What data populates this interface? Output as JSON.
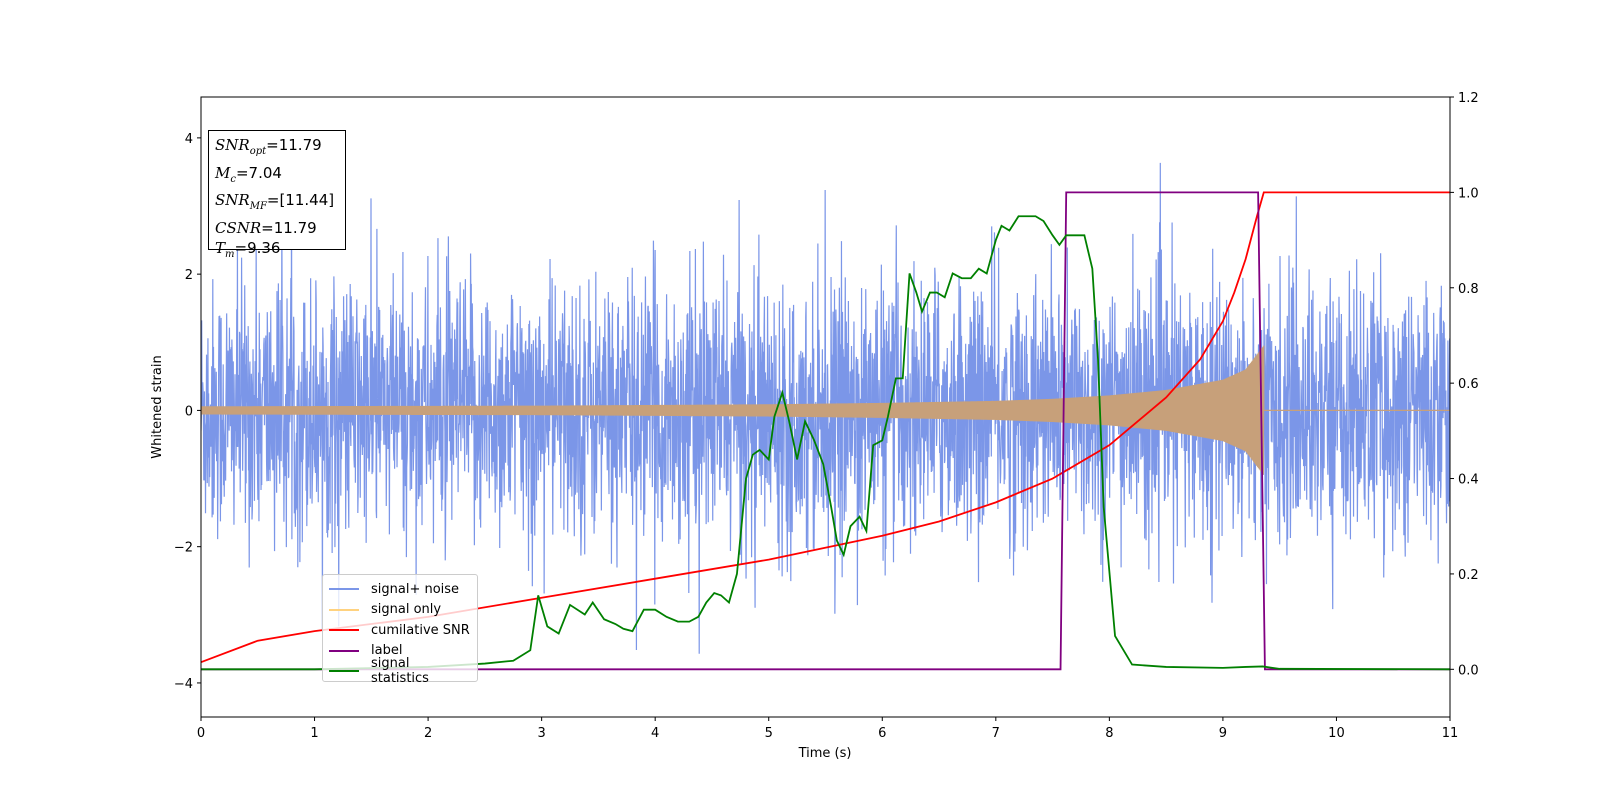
{
  "chart_data": {
    "type": "line",
    "title": "",
    "xlabel": "Time (s)",
    "ylabel": "Whitened strain",
    "xlim": [
      0,
      11
    ],
    "ylim_left": [
      -4.5,
      4.6
    ],
    "ylim_right": [
      -0.1,
      1.2
    ],
    "x_ticks": [
      "0",
      "1",
      "2",
      "3",
      "4",
      "5",
      "6",
      "7",
      "8",
      "9",
      "10",
      "11"
    ],
    "y_ticks_left": [
      "4",
      "2",
      "0",
      "−2",
      "−4"
    ],
    "y_ticks_right": [
      "1.2",
      "1.0",
      "0.8",
      "0.6",
      "0.4",
      "0.2",
      "0.0"
    ],
    "grid": false,
    "legend_placement": "lower-left",
    "annotation": {
      "snr_opt": {
        "sym": "SNR",
        "sub": "opt",
        "val": "=11.79"
      },
      "mc": {
        "sym": "M",
        "sub": "c",
        "val": "=7.04"
      },
      "snr_mf": {
        "sym": "SNR",
        "sub": "MF",
        "val": "=[11.44]"
      },
      "csnr": {
        "sym": "CSNR",
        "val": "=11.79"
      },
      "tm": {
        "sym": "T",
        "sub": "m",
        "val": "=9.36"
      }
    },
    "series": [
      {
        "name": "signal+ noise",
        "color": "#7b96e8",
        "axis": "left",
        "noise_std": 0.95,
        "range": [
          0,
          11
        ]
      },
      {
        "name": "signal only",
        "color": "#c7a07a",
        "axis": "left",
        "envelope": [
          [
            0.0,
            0.06
          ],
          [
            3.0,
            0.07
          ],
          [
            5.0,
            0.09
          ],
          [
            6.0,
            0.11
          ],
          [
            7.0,
            0.14
          ],
          [
            7.5,
            0.17
          ],
          [
            8.0,
            0.22
          ],
          [
            8.5,
            0.3
          ],
          [
            9.0,
            0.45
          ],
          [
            9.2,
            0.6
          ],
          [
            9.36,
            0.95
          ]
        ],
        "end_time": 9.36
      },
      {
        "name": "cumilative SNR",
        "color": "#ff0000",
        "axis": "right",
        "x": [
          0.0,
          0.5,
          1.0,
          2.0,
          3.0,
          4.0,
          5.0,
          6.0,
          6.5,
          7.0,
          7.5,
          8.0,
          8.5,
          8.8,
          9.0,
          9.1,
          9.2,
          9.3,
          9.36,
          11.0
        ],
        "y": [
          0.015,
          0.06,
          0.08,
          0.11,
          0.15,
          0.19,
          0.23,
          0.28,
          0.31,
          0.35,
          0.4,
          0.47,
          0.57,
          0.65,
          0.73,
          0.79,
          0.86,
          0.95,
          1.0,
          1.0
        ]
      },
      {
        "name": "label",
        "color": "#800080",
        "axis": "right",
        "x": [
          0.0,
          7.57,
          7.62,
          9.31,
          9.37,
          11.0
        ],
        "y": [
          0.0,
          0.0,
          1.0,
          1.0,
          0.0,
          0.0
        ]
      },
      {
        "name": "signal statistics",
        "color": "#008000",
        "axis": "right",
        "x": [
          0.0,
          1.0,
          2.0,
          2.5,
          2.75,
          2.9,
          2.97,
          3.05,
          3.15,
          3.25,
          3.38,
          3.45,
          3.55,
          3.65,
          3.72,
          3.8,
          3.9,
          4.0,
          4.1,
          4.2,
          4.3,
          4.38,
          4.45,
          4.52,
          4.58,
          4.65,
          4.72,
          4.8,
          4.86,
          4.92,
          5.0,
          5.05,
          5.12,
          5.18,
          5.25,
          5.32,
          5.4,
          5.48,
          5.55,
          5.6,
          5.66,
          5.72,
          5.8,
          5.86,
          5.92,
          6.0,
          6.05,
          6.12,
          6.18,
          6.24,
          6.3,
          6.35,
          6.42,
          6.48,
          6.55,
          6.62,
          6.7,
          6.78,
          6.85,
          6.92,
          7.0,
          7.05,
          7.12,
          7.2,
          7.28,
          7.35,
          7.42,
          7.5,
          7.56,
          7.62,
          7.7,
          7.78,
          7.85,
          7.9,
          7.95,
          8.05,
          8.2,
          8.5,
          9.0,
          9.2,
          9.35,
          9.5,
          11.0
        ],
        "y": [
          0.0,
          0.0,
          0.005,
          0.012,
          0.018,
          0.04,
          0.155,
          0.09,
          0.075,
          0.135,
          0.115,
          0.14,
          0.105,
          0.095,
          0.085,
          0.08,
          0.125,
          0.125,
          0.11,
          0.1,
          0.1,
          0.11,
          0.14,
          0.16,
          0.155,
          0.14,
          0.2,
          0.4,
          0.45,
          0.46,
          0.44,
          0.53,
          0.58,
          0.52,
          0.44,
          0.52,
          0.48,
          0.43,
          0.34,
          0.27,
          0.24,
          0.3,
          0.32,
          0.29,
          0.47,
          0.48,
          0.53,
          0.61,
          0.61,
          0.83,
          0.79,
          0.75,
          0.79,
          0.79,
          0.78,
          0.83,
          0.82,
          0.82,
          0.84,
          0.83,
          0.9,
          0.93,
          0.92,
          0.95,
          0.95,
          0.95,
          0.94,
          0.91,
          0.89,
          0.91,
          0.91,
          0.91,
          0.84,
          0.65,
          0.34,
          0.07,
          0.01,
          0.005,
          0.003,
          0.005,
          0.006,
          0.001,
          0.0
        ]
      }
    ]
  }
}
